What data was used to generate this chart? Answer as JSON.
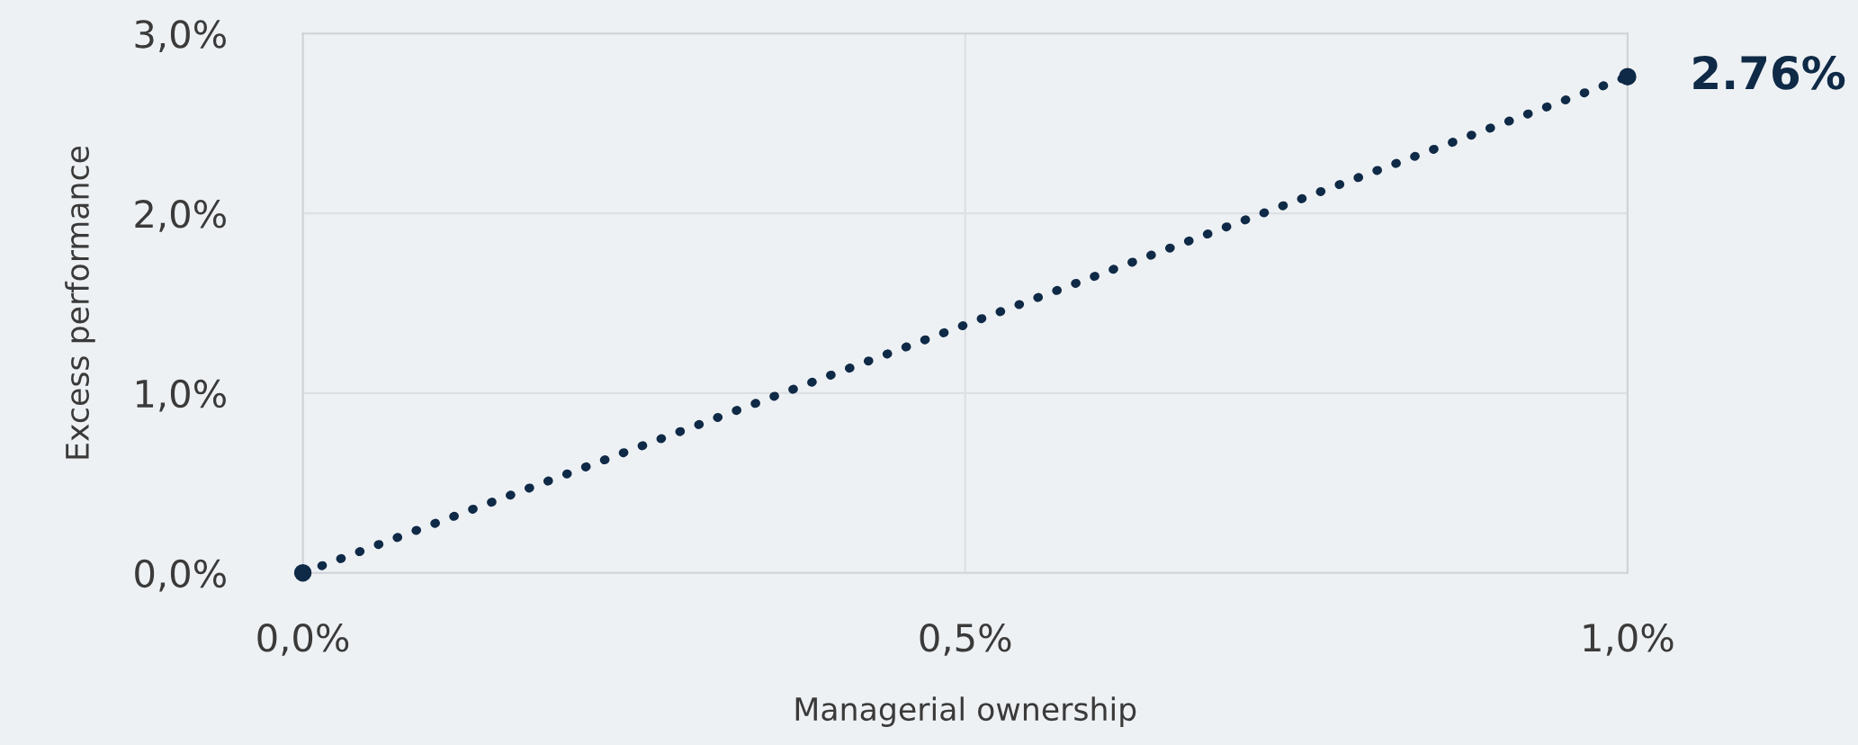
{
  "chart_data": {
    "type": "line",
    "xlabel": "Managerial ownership",
    "ylabel": "Excess performance",
    "x": [
      0.0,
      1.0
    ],
    "series": [
      {
        "color": "#0f2a47",
        "values": [
          0.0,
          2.76
        ]
      }
    ],
    "marker": "circle",
    "line_style": "dotted",
    "grid": true,
    "legend": false,
    "xlim": [
      0.0,
      1.0
    ],
    "ylim": [
      0.0,
      3.0
    ],
    "xticks": [
      {
        "value": 0.0,
        "label": "0,0%"
      },
      {
        "value": 0.5,
        "label": "0,5%"
      },
      {
        "value": 1.0,
        "label": "1,0%"
      }
    ],
    "yticks": [
      {
        "value": 0.0,
        "label": "0,0%"
      },
      {
        "value": 1.0,
        "label": "1,0%"
      },
      {
        "value": 2.0,
        "label": "2,0%"
      },
      {
        "value": 3.0,
        "label": "3,0%"
      }
    ],
    "annotations": [
      {
        "text": "2.76%",
        "x": 1.0,
        "y": 2.76
      }
    ]
  }
}
